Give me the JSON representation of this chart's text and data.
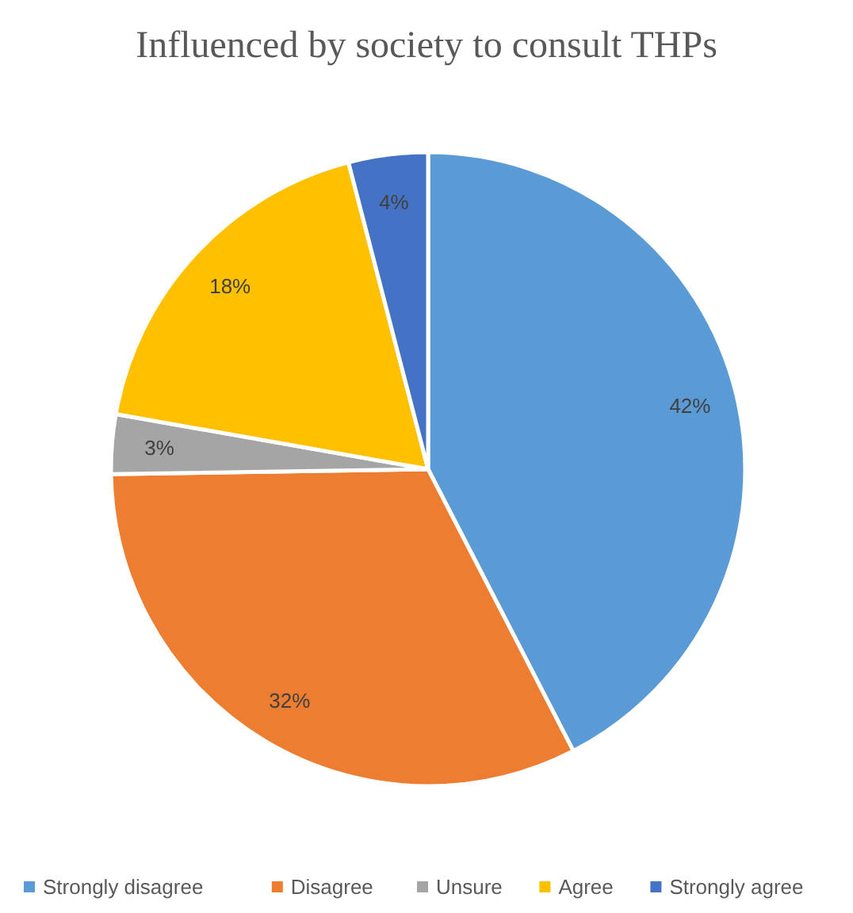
{
  "chart_data": {
    "type": "pie",
    "title": "Influenced by society to consult THPs",
    "categories": [
      "Strongly disagree",
      "Disagree",
      "Unsure",
      "Agree",
      "Strongly agree"
    ],
    "values": [
      42,
      32,
      3,
      18,
      4
    ],
    "colors": [
      "#5b9bd5",
      "#ed7d31",
      "#a5a5a5",
      "#ffc000",
      "#4472c4"
    ],
    "value_labels": [
      "42%",
      "32%",
      "3%",
      "18%",
      "4%"
    ],
    "legend": "bottom"
  }
}
